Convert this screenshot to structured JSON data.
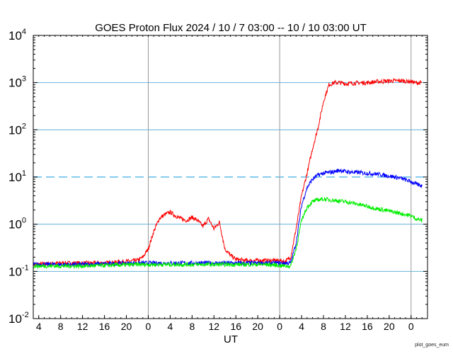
{
  "chart_data": {
    "type": "line",
    "title": "GOES Proton Flux   2024 / 10 /  7   03:00 -- 10 / 10   03:00   UT",
    "xlabel": "UT",
    "ylabel": "",
    "y_scale": "log",
    "ylim": [
      0.01,
      10000
    ],
    "y_ticks": [
      {
        "base": "10",
        "exp": "-2",
        "value": 0.01
      },
      {
        "base": "10",
        "exp": "-1",
        "value": 0.1
      },
      {
        "base": "10",
        "exp": "0",
        "value": 1
      },
      {
        "base": "10",
        "exp": "1",
        "value": 10
      },
      {
        "base": "10",
        "exp": "2",
        "value": 100
      },
      {
        "base": "10",
        "exp": "3",
        "value": 1000
      },
      {
        "base": "10",
        "exp": "4",
        "value": 10000
      }
    ],
    "xlim": [
      "2024-10-07 03:00",
      "2024-10-10 03:00"
    ],
    "x_ticks": [
      {
        "label": "4",
        "time": "2024-10-07 04:00"
      },
      {
        "label": "8",
        "time": "2024-10-07 08:00"
      },
      {
        "label": "12",
        "time": "2024-10-07 12:00"
      },
      {
        "label": "16",
        "time": "2024-10-07 16:00"
      },
      {
        "label": "20",
        "time": "2024-10-07 20:00"
      },
      {
        "label": "0",
        "time": "2024-10-08 00:00"
      },
      {
        "label": "4",
        "time": "2024-10-08 04:00"
      },
      {
        "label": "8",
        "time": "2024-10-08 08:00"
      },
      {
        "label": "12",
        "time": "2024-10-08 12:00"
      },
      {
        "label": "16",
        "time": "2024-10-08 16:00"
      },
      {
        "label": "20",
        "time": "2024-10-08 20:00"
      },
      {
        "label": "0",
        "time": "2024-10-09 00:00"
      },
      {
        "label": "4",
        "time": "2024-10-09 04:00"
      },
      {
        "label": "8",
        "time": "2024-10-09 08:00"
      },
      {
        "label": "12",
        "time": "2024-10-09 12:00"
      },
      {
        "label": "16",
        "time": "2024-10-09 16:00"
      },
      {
        "label": "20",
        "time": "2024-10-09 20:00"
      },
      {
        "label": "0",
        "time": "2024-10-10 00:00"
      }
    ],
    "day_boundaries": [
      "2024-10-08 00:00",
      "2024-10-09 00:00",
      "2024-10-10 00:00"
    ],
    "threshold_line": {
      "value": 10,
      "style": "dashed",
      "color": "#88ccee"
    },
    "grid": {
      "horizontal": true,
      "color": "#66b3dd"
    },
    "series": [
      {
        "color": "#ff0000",
        "x": [
          "2024-10-07 03:00",
          "2024-10-07 08:00",
          "2024-10-07 12:00",
          "2024-10-07 16:00",
          "2024-10-07 19:00",
          "2024-10-07 22:00",
          "2024-10-07 23:00",
          "2024-10-08 00:00",
          "2024-10-08 01:00",
          "2024-10-08 02:00",
          "2024-10-08 03:00",
          "2024-10-08 04:00",
          "2024-10-08 05:00",
          "2024-10-08 06:00",
          "2024-10-08 07:00",
          "2024-10-08 08:00",
          "2024-10-08 09:00",
          "2024-10-08 10:00",
          "2024-10-08 11:00",
          "2024-10-08 12:00",
          "2024-10-08 13:00",
          "2024-10-08 14:00",
          "2024-10-08 15:00",
          "2024-10-08 16:00",
          "2024-10-08 18:00",
          "2024-10-08 20:00",
          "2024-10-08 22:00",
          "2024-10-09 00:00",
          "2024-10-09 01:00",
          "2024-10-09 02:00",
          "2024-10-09 03:00",
          "2024-10-09 04:00",
          "2024-10-09 05:00",
          "2024-10-09 06:00",
          "2024-10-09 07:00",
          "2024-10-09 08:00",
          "2024-10-09 09:00",
          "2024-10-09 10:00",
          "2024-10-09 11:00",
          "2024-10-09 12:00",
          "2024-10-09 14:00",
          "2024-10-09 16:00",
          "2024-10-09 18:00",
          "2024-10-09 20:00",
          "2024-10-09 22:00",
          "2024-10-10 00:00",
          "2024-10-10 01:00",
          "2024-10-10 02:00"
        ],
        "y": [
          0.14,
          0.15,
          0.15,
          0.15,
          0.16,
          0.17,
          0.2,
          0.3,
          0.7,
          1.3,
          1.6,
          1.8,
          1.5,
          1.3,
          1.2,
          1.4,
          1.2,
          0.9,
          1.3,
          0.8,
          1.1,
          0.3,
          0.22,
          0.18,
          0.17,
          0.17,
          0.17,
          0.17,
          0.16,
          0.2,
          0.8,
          4,
          12,
          40,
          110,
          400,
          900,
          1000,
          1000,
          950,
          980,
          1000,
          1050,
          1080,
          1100,
          1050,
          980,
          1000
        ]
      },
      {
        "color": "#0000ff",
        "x": [
          "2024-10-07 03:00",
          "2024-10-07 12:00",
          "2024-10-07 22:00",
          "2024-10-08 06:00",
          "2024-10-08 14:00",
          "2024-10-08 22:00",
          "2024-10-09 01:00",
          "2024-10-09 02:00",
          "2024-10-09 03:00",
          "2024-10-09 04:00",
          "2024-10-09 05:00",
          "2024-10-09 06:00",
          "2024-10-09 07:00",
          "2024-10-09 08:00",
          "2024-10-09 09:00",
          "2024-10-09 10:00",
          "2024-10-09 11:00",
          "2024-10-09 12:00",
          "2024-10-09 14:00",
          "2024-10-09 16:00",
          "2024-10-09 18:00",
          "2024-10-09 20:00",
          "2024-10-09 22:00",
          "2024-10-10 00:00",
          "2024-10-10 01:00",
          "2024-10-10 02:00"
        ],
        "y": [
          0.14,
          0.14,
          0.15,
          0.15,
          0.15,
          0.15,
          0.15,
          0.15,
          0.4,
          2.5,
          6,
          9,
          11,
          12,
          12.5,
          13,
          14,
          13,
          12.5,
          12,
          11.5,
          10.5,
          9.5,
          8,
          7,
          6.5
        ]
      },
      {
        "color": "#00ee00",
        "x": [
          "2024-10-07 03:00",
          "2024-10-07 12:00",
          "2024-10-07 22:00",
          "2024-10-08 06:00",
          "2024-10-08 14:00",
          "2024-10-08 22:00",
          "2024-10-09 01:00",
          "2024-10-09 02:00",
          "2024-10-09 03:00",
          "2024-10-09 04:00",
          "2024-10-09 05:00",
          "2024-10-09 06:00",
          "2024-10-09 07:00",
          "2024-10-09 08:00",
          "2024-10-09 10:00",
          "2024-10-09 12:00",
          "2024-10-09 14:00",
          "2024-10-09 16:00",
          "2024-10-09 18:00",
          "2024-10-09 20:00",
          "2024-10-09 22:00",
          "2024-10-10 00:00",
          "2024-10-10 01:00",
          "2024-10-10 02:00"
        ],
        "y": [
          0.13,
          0.13,
          0.14,
          0.14,
          0.14,
          0.14,
          0.13,
          0.13,
          0.3,
          1.2,
          2.3,
          3.0,
          3.3,
          3.4,
          3.2,
          3.0,
          2.7,
          2.4,
          2.1,
          1.9,
          1.7,
          1.5,
          1.3,
          1.2
        ]
      }
    ]
  },
  "footer": {
    "credit": "plot_goes_eum"
  }
}
